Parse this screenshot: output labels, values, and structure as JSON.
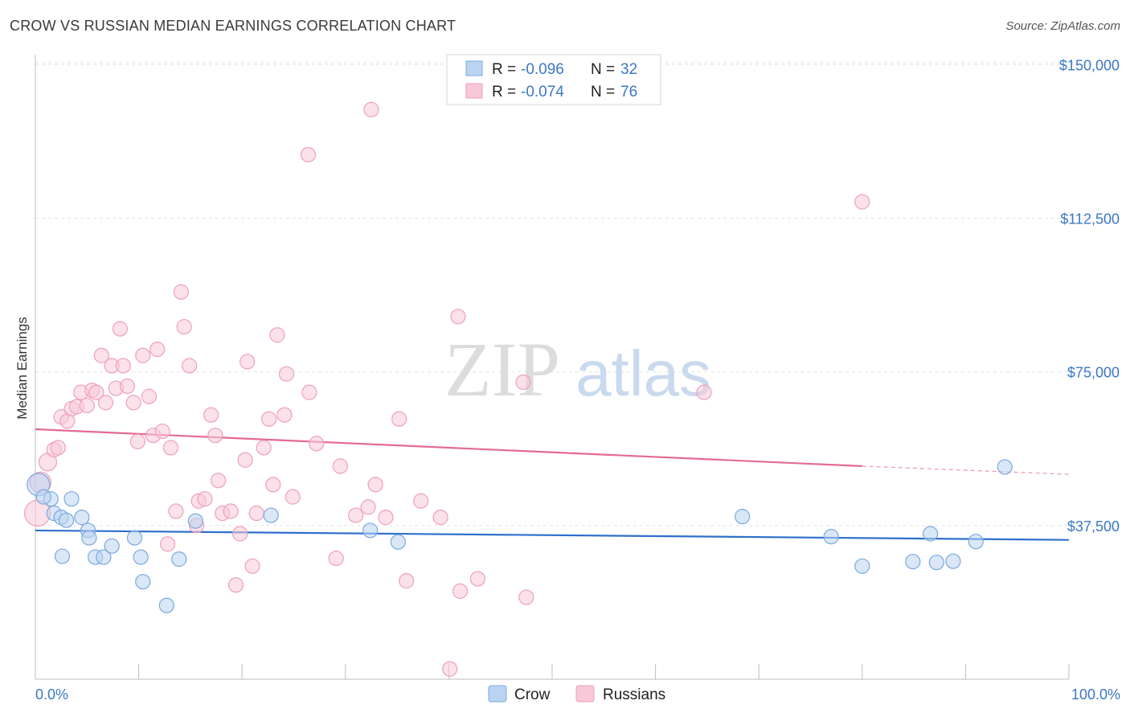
{
  "title": "CROW VS RUSSIAN MEDIAN EARNINGS CORRELATION CHART",
  "source": "Source: ZipAtlas.com",
  "watermark": {
    "zip": "ZIP",
    "atlas": "atlas"
  },
  "chart_data": {
    "type": "scatter",
    "ylabel": "Median Earnings",
    "xlim": [
      0,
      100
    ],
    "ylim": [
      0,
      155000
    ],
    "x_tick_labels": {
      "left": "0.0%",
      "right": "100.0%"
    },
    "y_ticks": [
      {
        "value": 37500,
        "label": "$37,500"
      },
      {
        "value": 75000,
        "label": "$75,000"
      },
      {
        "value": 112500,
        "label": "$112,500"
      },
      {
        "value": 150000,
        "label": "$150,000"
      }
    ],
    "legend": {
      "entries": [
        {
          "series": "Crow",
          "r_label": "R =",
          "r_value": "-0.096",
          "n_label": "N =",
          "n_value": "32"
        },
        {
          "series": "Russians",
          "r_label": "R =",
          "r_value": "-0.074",
          "n_label": "N =",
          "n_value": "76"
        }
      ]
    },
    "bottom_legend": [
      "Crow",
      "Russians"
    ],
    "colors": {
      "crow_fill": "#b9d3f1",
      "crow_stroke": "#7aa8de",
      "crow_line": "#2f6fcb",
      "rus_fill": "#f8c8d8",
      "rus_stroke": "#eea0ba",
      "rus_line": "#e46a92"
    },
    "series": [
      {
        "name": "Crow",
        "trend": {
          "x0": 0,
          "y0": 36300,
          "x1": 100,
          "y1": 34000
        },
        "points": [
          {
            "x": 0.3,
            "y": 47500,
            "s": 14
          },
          {
            "x": 1.5,
            "y": 44000,
            "s": 9
          },
          {
            "x": 1.8,
            "y": 40500,
            "s": 9
          },
          {
            "x": 2.5,
            "y": 39500,
            "s": 9
          },
          {
            "x": 3.0,
            "y": 38800,
            "s": 9
          },
          {
            "x": 2.6,
            "y": 30000,
            "s": 9
          },
          {
            "x": 3.5,
            "y": 44000,
            "s": 9
          },
          {
            "x": 4.5,
            "y": 39500,
            "s": 9
          },
          {
            "x": 5.1,
            "y": 36300,
            "s": 9
          },
          {
            "x": 5.2,
            "y": 34500,
            "s": 9
          },
          {
            "x": 5.8,
            "y": 29800,
            "s": 9
          },
          {
            "x": 6.6,
            "y": 29800,
            "s": 9
          },
          {
            "x": 7.4,
            "y": 32500,
            "s": 9
          },
          {
            "x": 9.6,
            "y": 34500,
            "s": 9
          },
          {
            "x": 10.2,
            "y": 29800,
            "s": 9
          },
          {
            "x": 10.4,
            "y": 23800,
            "s": 9
          },
          {
            "x": 12.7,
            "y": 18000,
            "s": 9
          },
          {
            "x": 13.9,
            "y": 29300,
            "s": 9
          },
          {
            "x": 15.5,
            "y": 38600,
            "s": 9
          },
          {
            "x": 22.8,
            "y": 40000,
            "s": 9
          },
          {
            "x": 32.4,
            "y": 36300,
            "s": 9
          },
          {
            "x": 35.1,
            "y": 33500,
            "s": 9
          },
          {
            "x": 68.4,
            "y": 39700,
            "s": 9
          },
          {
            "x": 77.0,
            "y": 34800,
            "s": 9
          },
          {
            "x": 80.0,
            "y": 27600,
            "s": 9
          },
          {
            "x": 84.9,
            "y": 28700,
            "s": 9
          },
          {
            "x": 86.6,
            "y": 35500,
            "s": 9
          },
          {
            "x": 87.2,
            "y": 28500,
            "s": 9
          },
          {
            "x": 88.8,
            "y": 28800,
            "s": 9
          },
          {
            "x": 91.0,
            "y": 33600,
            "s": 9
          },
          {
            "x": 93.8,
            "y": 51800,
            "s": 9
          },
          {
            "x": 0.8,
            "y": 44500,
            "s": 9
          }
        ]
      },
      {
        "name": "Russians",
        "trend": {
          "x0": 0,
          "y0": 61000,
          "x1": 80,
          "y1": 52000,
          "dash_x1": 100,
          "dash_y1": 50000
        },
        "points": [
          {
            "x": 0.2,
            "y": 40500,
            "s": 16
          },
          {
            "x": 0.5,
            "y": 48000,
            "s": 13
          },
          {
            "x": 1.2,
            "y": 53000,
            "s": 11
          },
          {
            "x": 1.8,
            "y": 56000,
            "s": 9
          },
          {
            "x": 2.2,
            "y": 56500,
            "s": 9
          },
          {
            "x": 2.5,
            "y": 64000,
            "s": 9
          },
          {
            "x": 3.1,
            "y": 63000,
            "s": 9
          },
          {
            "x": 3.5,
            "y": 66000,
            "s": 9
          },
          {
            "x": 4.0,
            "y": 66500,
            "s": 9
          },
          {
            "x": 4.4,
            "y": 70000,
            "s": 9
          },
          {
            "x": 5.0,
            "y": 66800,
            "s": 9
          },
          {
            "x": 5.5,
            "y": 70500,
            "s": 9
          },
          {
            "x": 5.9,
            "y": 70000,
            "s": 9
          },
          {
            "x": 6.4,
            "y": 79000,
            "s": 9
          },
          {
            "x": 6.8,
            "y": 67500,
            "s": 9
          },
          {
            "x": 7.4,
            "y": 76500,
            "s": 9
          },
          {
            "x": 7.8,
            "y": 71000,
            "s": 9
          },
          {
            "x": 8.2,
            "y": 85500,
            "s": 9
          },
          {
            "x": 8.5,
            "y": 76500,
            "s": 9
          },
          {
            "x": 8.9,
            "y": 71500,
            "s": 9
          },
          {
            "x": 9.5,
            "y": 67500,
            "s": 9
          },
          {
            "x": 9.9,
            "y": 58000,
            "s": 9
          },
          {
            "x": 10.4,
            "y": 79000,
            "s": 9
          },
          {
            "x": 11.0,
            "y": 69000,
            "s": 9
          },
          {
            "x": 11.4,
            "y": 59500,
            "s": 9
          },
          {
            "x": 11.8,
            "y": 80500,
            "s": 9
          },
          {
            "x": 12.3,
            "y": 60500,
            "s": 9
          },
          {
            "x": 12.8,
            "y": 33000,
            "s": 9
          },
          {
            "x": 13.1,
            "y": 56500,
            "s": 9
          },
          {
            "x": 13.6,
            "y": 41000,
            "s": 9
          },
          {
            "x": 14.1,
            "y": 94500,
            "s": 9
          },
          {
            "x": 14.4,
            "y": 86000,
            "s": 9
          },
          {
            "x": 14.9,
            "y": 76500,
            "s": 9
          },
          {
            "x": 15.6,
            "y": 37500,
            "s": 9
          },
          {
            "x": 15.8,
            "y": 43500,
            "s": 9
          },
          {
            "x": 16.4,
            "y": 44000,
            "s": 9
          },
          {
            "x": 17.0,
            "y": 64500,
            "s": 9
          },
          {
            "x": 17.4,
            "y": 59500,
            "s": 9
          },
          {
            "x": 17.7,
            "y": 48500,
            "s": 9
          },
          {
            "x": 18.1,
            "y": 40500,
            "s": 9
          },
          {
            "x": 18.9,
            "y": 41000,
            "s": 9
          },
          {
            "x": 19.4,
            "y": 23000,
            "s": 9
          },
          {
            "x": 19.8,
            "y": 35500,
            "s": 9
          },
          {
            "x": 20.3,
            "y": 53500,
            "s": 9
          },
          {
            "x": 20.5,
            "y": 77500,
            "s": 9
          },
          {
            "x": 21.0,
            "y": 27600,
            "s": 9
          },
          {
            "x": 21.4,
            "y": 40500,
            "s": 9
          },
          {
            "x": 22.1,
            "y": 56500,
            "s": 9
          },
          {
            "x": 22.6,
            "y": 63500,
            "s": 9
          },
          {
            "x": 23.0,
            "y": 47500,
            "s": 9
          },
          {
            "x": 23.4,
            "y": 84000,
            "s": 9
          },
          {
            "x": 24.1,
            "y": 64500,
            "s": 9
          },
          {
            "x": 24.3,
            "y": 74500,
            "s": 9
          },
          {
            "x": 24.9,
            "y": 44500,
            "s": 9
          },
          {
            "x": 26.4,
            "y": 128000,
            "s": 9
          },
          {
            "x": 26.5,
            "y": 70000,
            "s": 9
          },
          {
            "x": 27.2,
            "y": 57500,
            "s": 9
          },
          {
            "x": 29.1,
            "y": 29500,
            "s": 9
          },
          {
            "x": 29.5,
            "y": 52000,
            "s": 9
          },
          {
            "x": 31.0,
            "y": 40000,
            "s": 9
          },
          {
            "x": 32.2,
            "y": 42000,
            "s": 9
          },
          {
            "x": 32.5,
            "y": 139000,
            "s": 9
          },
          {
            "x": 32.9,
            "y": 47500,
            "s": 9
          },
          {
            "x": 33.9,
            "y": 39500,
            "s": 9
          },
          {
            "x": 35.2,
            "y": 63500,
            "s": 9
          },
          {
            "x": 35.9,
            "y": 24000,
            "s": 9
          },
          {
            "x": 37.3,
            "y": 43500,
            "s": 9
          },
          {
            "x": 39.2,
            "y": 39500,
            "s": 9
          },
          {
            "x": 40.1,
            "y": 2500,
            "s": 9
          },
          {
            "x": 40.9,
            "y": 88500,
            "s": 9
          },
          {
            "x": 41.1,
            "y": 21500,
            "s": 9
          },
          {
            "x": 42.8,
            "y": 24500,
            "s": 9
          },
          {
            "x": 47.2,
            "y": 72500,
            "s": 9
          },
          {
            "x": 47.5,
            "y": 20000,
            "s": 9
          },
          {
            "x": 64.7,
            "y": 70000,
            "s": 9
          },
          {
            "x": 80.0,
            "y": 116500,
            "s": 9
          }
        ]
      }
    ]
  }
}
